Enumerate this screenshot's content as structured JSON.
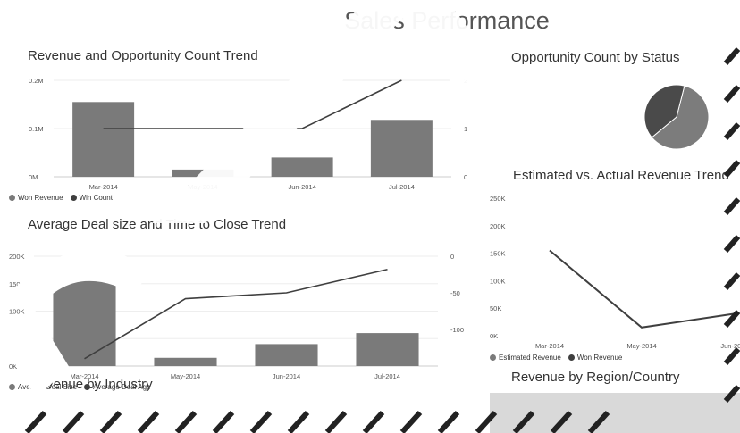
{
  "title": "Sales Performance",
  "charts": {
    "c1_title": "Revenue and Opportunity Count Trend",
    "c2_title": "Opportunity Count by Status",
    "c3_title": "Estimated vs. Actual Revenue Trend",
    "c4_title": "Average Deal size and Time to Close Trend",
    "c5_title": "Revenue by Region/Country",
    "c6_title": "Revenue by Industry"
  },
  "watermark_text": "SAMPLE",
  "colors": {
    "bar": "#7a7a7a",
    "line": "#3f3f3f",
    "pie_a": "#7c7c7c",
    "pie_b": "#4a4a4a"
  },
  "chart_data": [
    {
      "type": "bar",
      "title": "Revenue and Opportunity Count Trend",
      "categories": [
        "Mar-2014",
        "May-2014",
        "Jun-2014",
        "Jul-2014"
      ],
      "series": [
        {
          "name": "Won Revenue",
          "type": "bar",
          "axis": "left",
          "values": [
            155000,
            15000,
            40000,
            118000
          ]
        },
        {
          "name": "Win Count",
          "type": "line",
          "axis": "right",
          "values": [
            1,
            1,
            1,
            2
          ]
        }
      ],
      "y_ticks": [
        "0M",
        "0.1M",
        "0.2M"
      ],
      "y2_ticks": [
        "0",
        "1",
        "2"
      ],
      "ylim": [
        0,
        200000
      ],
      "y2lim": [
        0,
        2
      ],
      "legend": "bottom-left"
    },
    {
      "type": "pie",
      "title": "Opportunity Count by Status",
      "slices": [
        {
          "value": 60,
          "color": "#7c7c7c"
        },
        {
          "value": 40,
          "color": "#4a4a4a"
        }
      ]
    },
    {
      "type": "line",
      "title": "Estimated vs. Actual Revenue Trend",
      "categories": [
        "Mar-2014",
        "May-2014",
        "Jun-2014"
      ],
      "series": [
        {
          "name": "Estimated Revenue",
          "values": [
            null,
            null,
            null
          ]
        },
        {
          "name": "Won Revenue",
          "values": [
            155000,
            15000,
            40000
          ]
        }
      ],
      "y_ticks": [
        "0K",
        "50K",
        "100K",
        "150K",
        "200K",
        "250K"
      ],
      "ylim": [
        0,
        250000
      ],
      "legend": "bottom-left"
    },
    {
      "type": "bar",
      "title": "Average Deal size and Time to Close Trend",
      "categories": [
        "Mar-2014",
        "May-2014",
        "Jun-2014",
        "Jul-2014"
      ],
      "series": [
        {
          "name": "Average Deal Size",
          "type": "bar",
          "axis": "left",
          "values": [
            155000,
            15000,
            40000,
            60000
          ]
        },
        {
          "name": "Average Deal Age",
          "type": "line",
          "axis": "right",
          "values": [
            -140,
            -58,
            -50,
            -18
          ]
        }
      ],
      "y_ticks": [
        "0K",
        "50K",
        "100K",
        "150K",
        "200K"
      ],
      "y2_ticks": [
        "0",
        "-50",
        "-100"
      ],
      "ylim": [
        0,
        200000
      ],
      "y2lim": [
        -150,
        0
      ],
      "legend": "bottom-left"
    }
  ]
}
